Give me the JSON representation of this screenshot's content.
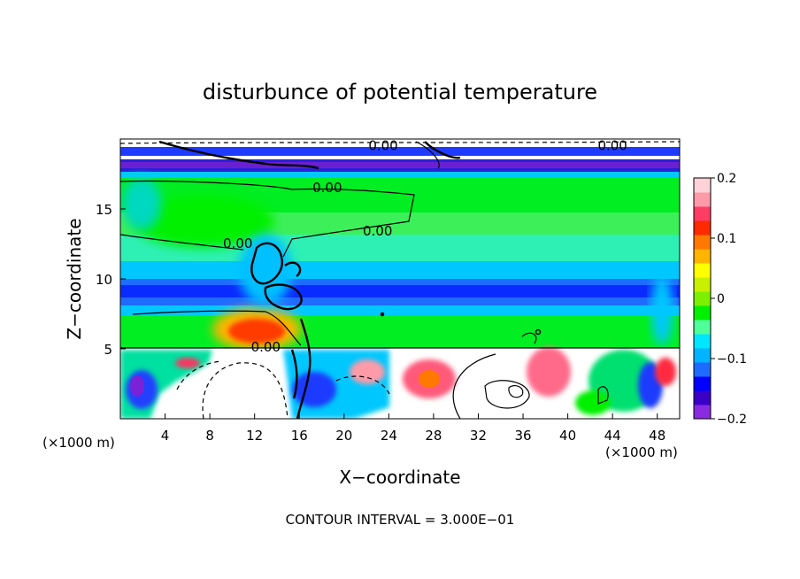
{
  "chart_data": {
    "type": "heatmap",
    "title": "disturbunce of potential temperature",
    "xlabel": "X−coordinate",
    "ylabel": "Z−coordinate",
    "x_unit": "(×1000 m)",
    "x_unit_right": "(×1000 m)",
    "xlim": [
      0,
      50
    ],
    "ylim": [
      0,
      20
    ],
    "x_ticks": [
      4,
      8,
      12,
      16,
      20,
      24,
      28,
      32,
      36,
      40,
      44,
      48
    ],
    "y_ticks": [
      5,
      10,
      15
    ],
    "colorbar": {
      "min": -0.2,
      "max": 0.2,
      "ticks": [
        0.2,
        0.1,
        0,
        -0.1,
        -0.2
      ],
      "tick_labels": [
        "0.2",
        "0.1",
        "0",
        "−0.1",
        "−0.2"
      ],
      "colors": [
        "#8a2be2",
        "#3a00c8",
        "#0000ff",
        "#1f6bff",
        "#00b4ff",
        "#00e6ff",
        "#50ff9a",
        "#00f000",
        "#7cf000",
        "#c8f000",
        "#ffff00",
        "#ffb400",
        "#ff7800",
        "#ff2a00",
        "#ff3c64",
        "#ff9aa8",
        "#ffd2d8"
      ]
    },
    "contour_interval_label": "CONTOUR INTERVAL = 3.000E−01",
    "contour_labels": [
      {
        "text": "0.00",
        "x": 18.5,
        "z": 16.2
      },
      {
        "text": "0.00",
        "x": 23.0,
        "z": 13.1
      },
      {
        "text": "0.00",
        "x": 10.5,
        "z": 12.2
      },
      {
        "text": "0.00",
        "x": 13.0,
        "z": 4.8
      },
      {
        "text": "0.00",
        "x": 23.5,
        "z": 19.2
      },
      {
        "text": "0.00",
        "x": 44.0,
        "z": 19.2
      }
    ],
    "layers": [
      {
        "z0": 0,
        "z1": 5,
        "value": "mixed"
      },
      {
        "z0": 5,
        "z1": 7.5,
        "value": 0.03
      },
      {
        "z0": 7.5,
        "z1": 8.4,
        "value": -0.07
      },
      {
        "z0": 8.4,
        "z1": 9.8,
        "value": -0.14
      },
      {
        "z0": 9.8,
        "z1": 11.4,
        "value": -0.08
      },
      {
        "z0": 11.4,
        "z1": 13.2,
        "value": -0.04
      },
      {
        "z0": 13.2,
        "z1": 17.0,
        "value": 0.0
      },
      {
        "z0": 17.0,
        "z1": 17.6,
        "value": -0.06
      },
      {
        "z0": 17.6,
        "z1": 18.8,
        "value": -0.17
      },
      {
        "z0": 18.8,
        "z1": 20,
        "value": "mixed"
      }
    ]
  }
}
